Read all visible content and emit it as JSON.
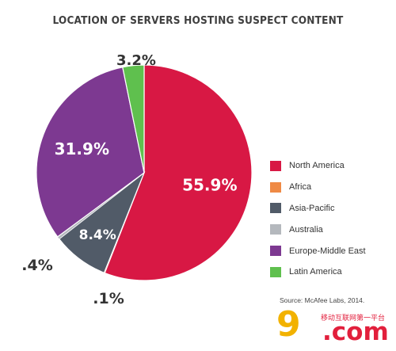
{
  "chart_data": {
    "type": "pie",
    "title": "LOCATION OF SERVERS HOSTING SUSPECT CONTENT",
    "source": "Source: McAfee Labs, 2014.",
    "legend_position": "right",
    "slices": [
      {
        "name": "North America",
        "value": 55.9,
        "label": "55.9%",
        "color": "#d81844"
      },
      {
        "name": "Africa",
        "value": 0.1,
        "label": ".1%",
        "color": "#ef8a45"
      },
      {
        "name": "Asia-Pacific",
        "value": 8.4,
        "label": "8.4%",
        "color": "#515b68"
      },
      {
        "name": "Australia",
        "value": 0.4,
        "label": ".4%",
        "color": "#b4b8bd"
      },
      {
        "name": "Europe-Middle East",
        "value": 31.9,
        "label": "31.9%",
        "color": "#7d3991"
      },
      {
        "name": "Latin America",
        "value": 3.2,
        "label": "3.2%",
        "color": "#5fc04e"
      }
    ]
  },
  "watermark": {
    "nine": "9",
    "com": ".com",
    "tagline": "移动互联网第一平台"
  }
}
